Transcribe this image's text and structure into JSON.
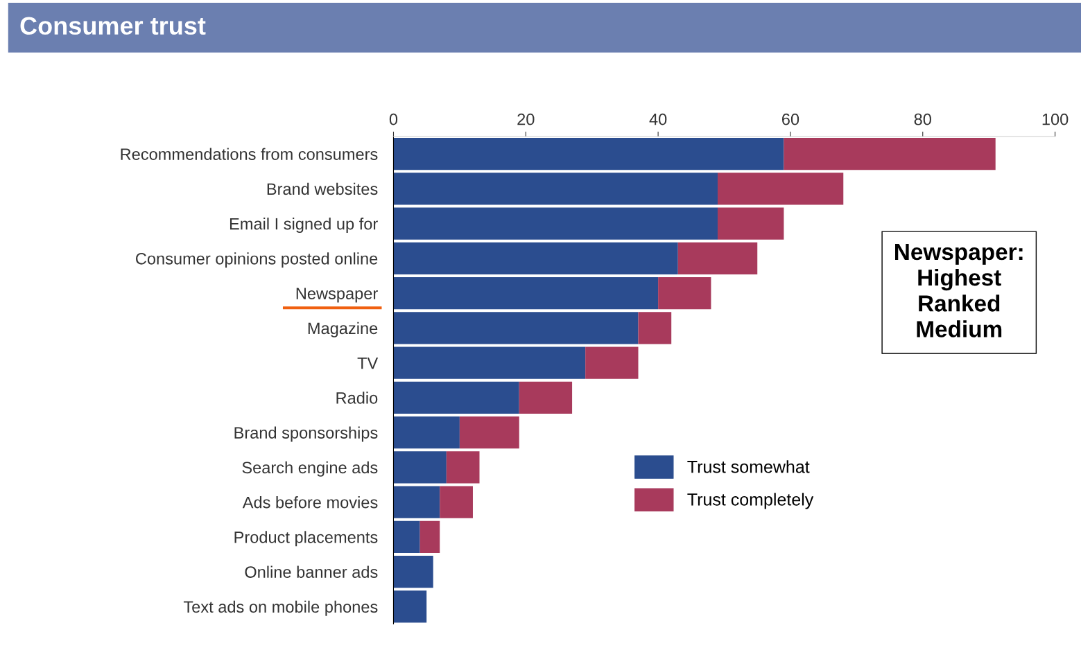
{
  "chart_data": {
    "type": "bar",
    "orientation": "horizontal",
    "stacked": true,
    "title": "Consumer trust",
    "categories": [
      "Recommendations from consumers",
      "Brand websites",
      "Email I signed up for",
      "Consumer opinions posted online",
      "Newspaper",
      "Magazine",
      "TV",
      "Radio",
      "Brand sponsorships",
      "Search engine ads",
      "Ads before movies",
      "Product placements",
      "Online banner ads",
      "Text ads on mobile phones"
    ],
    "series": [
      {
        "name": "Trust somewhat",
        "color": "#2b4d8f",
        "values": [
          59,
          49,
          49,
          43,
          40,
          37,
          29,
          19,
          10,
          8,
          7,
          4,
          6,
          5
        ]
      },
      {
        "name": "Trust completely",
        "color": "#a83a5c",
        "values": [
          32,
          19,
          10,
          12,
          8,
          5,
          8,
          8,
          9,
          5,
          5,
          3,
          0,
          0
        ]
      }
    ],
    "xlim": [
      0,
      100
    ],
    "xticks": [
      0,
      20,
      40,
      60,
      80,
      100
    ],
    "grid": false,
    "legend": "bottom",
    "annotations": [
      "Newspaper:\nHighest\nRanked\nMedium"
    ]
  }
}
